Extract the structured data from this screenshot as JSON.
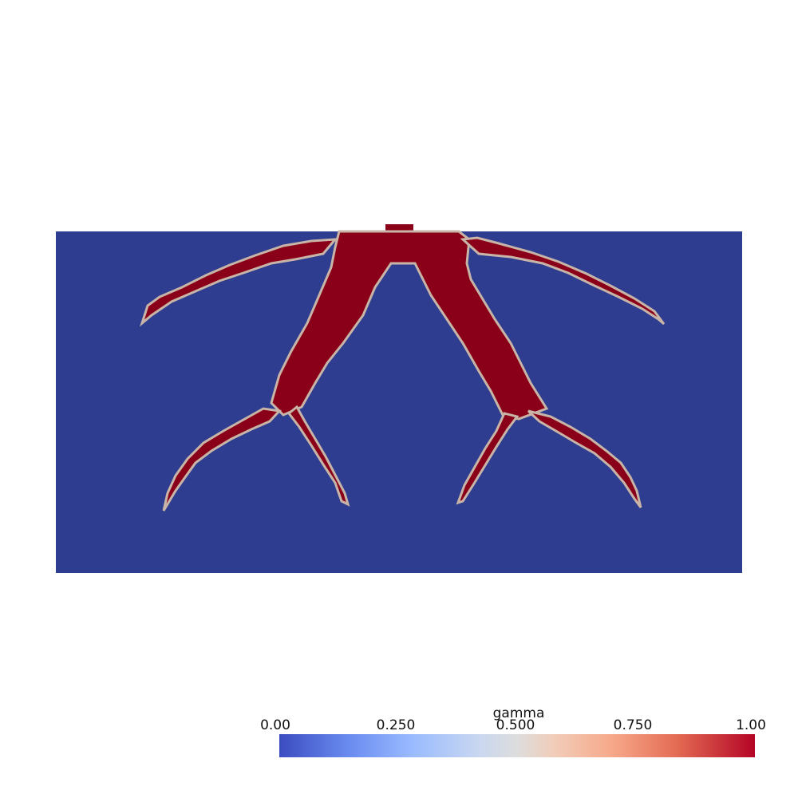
{
  "scalar_field": "gamma",
  "colorbar": {
    "title": "gamma",
    "range": [
      0,
      1
    ],
    "tick_labels": [
      "0.00",
      "0.250",
      "0.500",
      "0.750",
      "1.00"
    ],
    "colormap": "Cool to Warm",
    "low_color": "#3b4cc0",
    "mid_color": "#dddddd",
    "high_color": "#b40426"
  },
  "render": {
    "background_color": "#ffffff",
    "domain_color": "#2e3d8f",
    "structure_color": "#8b0019",
    "interface_color": "#c9b4a8"
  }
}
